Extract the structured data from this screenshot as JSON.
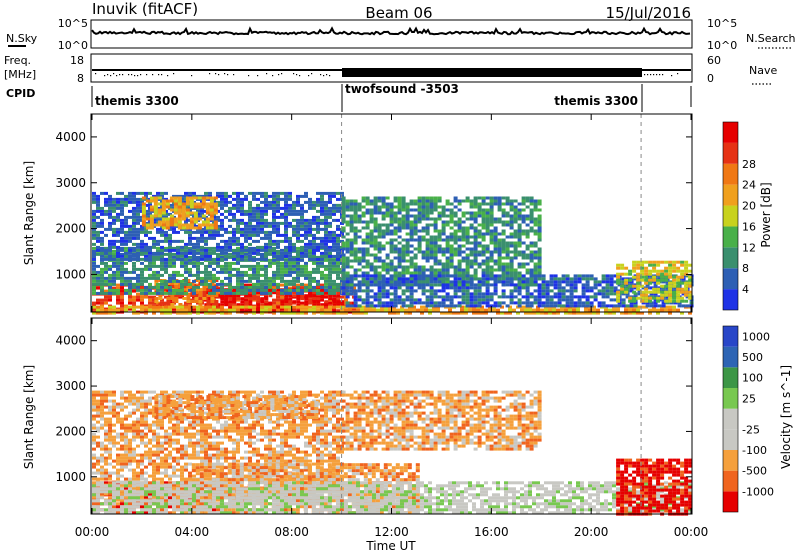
{
  "header": {
    "site": "Inuvik (fitACF)",
    "beam": "Beam 06",
    "date": "15/Jul/2016"
  },
  "strips": {
    "nsky_label": "N.Sky",
    "nsky_ticks": [
      "10^5",
      "10^0"
    ],
    "nsearch_label": "N.Search",
    "nsearch_ticks": [
      "10^5",
      "10^0"
    ],
    "freq_label_line1": "Freq.",
    "freq_label_line2": "[MHz]",
    "freq_ticks": [
      "18",
      "8"
    ],
    "nave_label": "Nave",
    "nave_ticks": [
      "60",
      "0"
    ],
    "cpid_label": "CPID",
    "cpid_segments": [
      {
        "name": "themis 3300",
        "start_hour": 0,
        "end_hour": 10
      },
      {
        "name": "twofsound -3503",
        "start_hour": 10,
        "end_hour": 22
      },
      {
        "name": "themis 3300",
        "start_hour": 22,
        "end_hour": 24
      }
    ]
  },
  "x_axis": {
    "label": "Time UT",
    "ticks": [
      "00:00",
      "04:00",
      "08:00",
      "12:00",
      "16:00",
      "20:00",
      "00:00"
    ]
  },
  "colors": {
    "power_scale": [
      "#1e32e6",
      "#2d5fb4",
      "#3a8f6e",
      "#49b049",
      "#c8d21e",
      "#f0a01e",
      "#f07814",
      "#e63214",
      "#e60000"
    ],
    "velocity_scale": [
      "#e60000",
      "#f0641e",
      "#f5a03c",
      "#c8c8c3",
      "#c8c8c3",
      "#78c850",
      "#3c9646",
      "#2d64b4",
      "#2846c8"
    ],
    "ground_scatter": "#c8c8c3"
  },
  "chart_data": [
    {
      "type": "heatmap",
      "title": "",
      "xlabel": "",
      "ylabel": "Slant Range [km]",
      "xlim_hours": [
        0,
        24
      ],
      "ylim": [
        180,
        4500
      ],
      "y_ticks": [
        "1000",
        "2000",
        "3000",
        "4000"
      ],
      "colorbar": {
        "label": "Power [dB]",
        "ticks": [
          "4",
          "8",
          "12",
          "16",
          "20",
          "24",
          "28"
        ]
      },
      "regions": [
        {
          "t0": 0.0,
          "t1": 10.5,
          "r0": 180,
          "r1": 800,
          "level": 8
        },
        {
          "t0": 4.5,
          "t1": 10.0,
          "r0": 200,
          "r1": 700,
          "level": 9
        },
        {
          "t0": 2.5,
          "t1": 5.0,
          "r0": 300,
          "r1": 900,
          "level": 7
        },
        {
          "t0": 0.0,
          "t1": 24.0,
          "r0": 180,
          "r1": 320,
          "level": 6
        },
        {
          "t0": 0.0,
          "t1": 10.0,
          "r0": 600,
          "r1": 1600,
          "level": 3
        },
        {
          "t0": 0.0,
          "t1": 10.0,
          "r0": 1300,
          "r1": 2800,
          "level": 2
        },
        {
          "t0": 2.0,
          "t1": 5.0,
          "r0": 2000,
          "r1": 2700,
          "level": 6
        },
        {
          "t0": 10.0,
          "t1": 18.0,
          "r0": 800,
          "r1": 2700,
          "level": 3
        },
        {
          "t0": 10.0,
          "t1": 24.0,
          "r0": 300,
          "r1": 1000,
          "level": 2
        },
        {
          "t0": 21.0,
          "t1": 24.0,
          "r0": 400,
          "r1": 1300,
          "level": 5
        }
      ]
    },
    {
      "type": "heatmap",
      "title": "",
      "xlabel": "Time UT",
      "ylabel": "Slant Range [km]",
      "xlim_hours": [
        0,
        24
      ],
      "ylim": [
        180,
        4500
      ],
      "y_ticks": [
        "1000",
        "2000",
        "3000",
        "4000"
      ],
      "colorbar": {
        "label": "Velocity [m s^-1]",
        "ticks": [
          "1000",
          "500",
          "100",
          "25",
          "-25",
          "-100",
          "-500",
          "-1000"
        ]
      },
      "regions": [
        {
          "t0": 0.0,
          "t1": 5.0,
          "r0": 180,
          "r1": 900,
          "level": 2
        },
        {
          "t0": 0.0,
          "t1": 10.0,
          "r0": 500,
          "r1": 2900,
          "level": 3
        },
        {
          "t0": 2.5,
          "t1": 9.0,
          "r0": 2300,
          "r1": 2800,
          "level": 3
        },
        {
          "t0": 10.0,
          "t1": 18.0,
          "r0": 1600,
          "r1": 2900,
          "level": 3
        },
        {
          "t0": 4.0,
          "t1": 13.0,
          "r0": 180,
          "r1": 1300,
          "level": 3
        },
        {
          "t0": 0.0,
          "t1": 24.0,
          "r0": 200,
          "r1": 900,
          "level": 5
        },
        {
          "t0": 21.0,
          "t1": 24.0,
          "r0": 200,
          "r1": 1400,
          "level": 1
        }
      ]
    }
  ]
}
